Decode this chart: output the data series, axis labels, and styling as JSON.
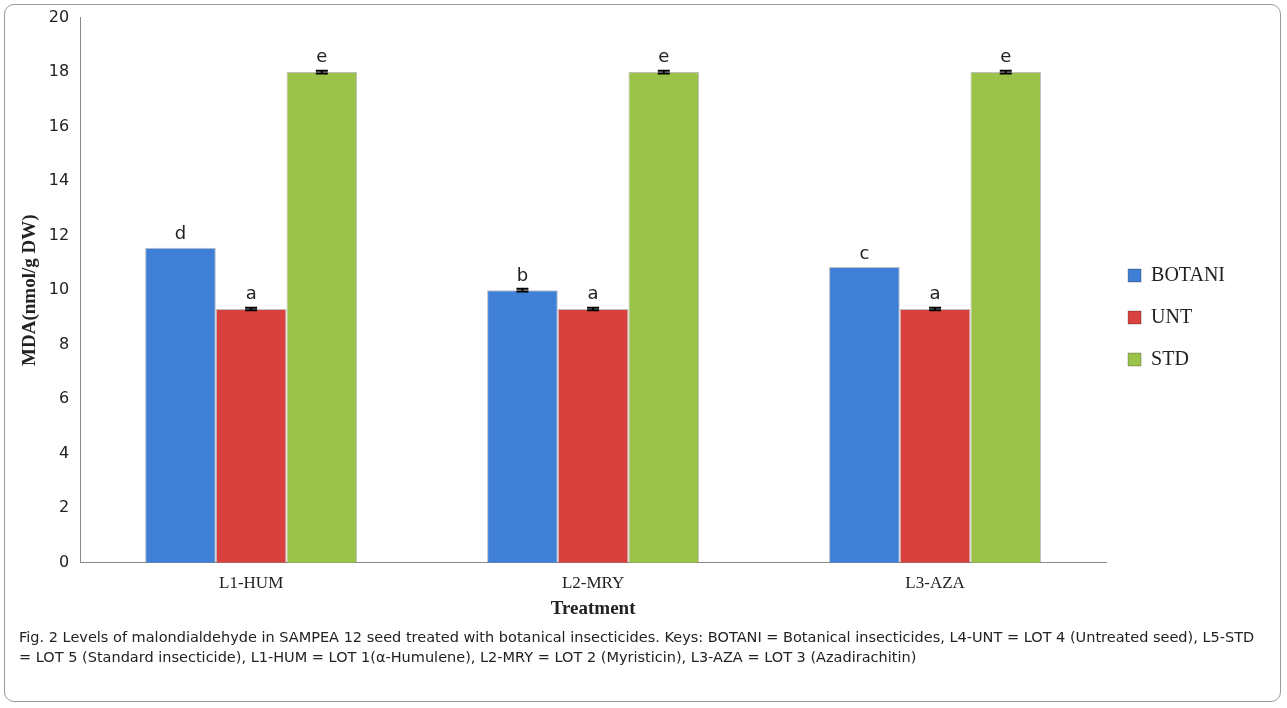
{
  "chart_data": {
    "type": "bar",
    "xlabel": "Treatment",
    "ylabel": "MDA(nmol/g DW)",
    "categories": [
      "L1-HUM",
      "L2-MRY",
      "L3-AZA"
    ],
    "series": [
      {
        "name": "BOTANI",
        "color": "#3f7fd6",
        "values": [
          11.56,
          10.0,
          10.85
        ],
        "errors": [
          null,
          0.05,
          null
        ],
        "value_labels": [
          "d",
          "b",
          "c"
        ]
      },
      {
        "name": "UNT",
        "color": "#d8413d",
        "values": [
          9.31,
          9.31,
          9.31
        ],
        "errors": [
          0.05,
          0.05,
          0.05
        ],
        "value_labels": [
          "a",
          "a",
          "a"
        ]
      },
      {
        "name": "STD",
        "color": "#9bc34a",
        "values": [
          18,
          18,
          18
        ],
        "errors": [
          0.05,
          0.05,
          0.05
        ],
        "value_labels": [
          "e",
          "e",
          "e"
        ]
      }
    ],
    "ylim": [
      0,
      20
    ],
    "yticks": [
      0,
      2,
      4,
      6,
      8,
      10,
      12,
      14,
      16,
      18,
      20
    ],
    "grid": false,
    "legend": "right",
    "annotations": [
      "Fig. 2  Levels of malondialdehyde in SAMPEA 12 seed treated with botanical insecticides. Keys: BOTANI = Botanical insecticides, L4-UNT = LOT 4 (Untreated seed), L5-STD = LOT 5 (Standard insecticide), L1-HUM = LOT 1(α-Humulene), L2-MRY = LOT 2 (Myristicin), L3-AZA = LOT 3 (Azadirachitin)"
    ]
  }
}
